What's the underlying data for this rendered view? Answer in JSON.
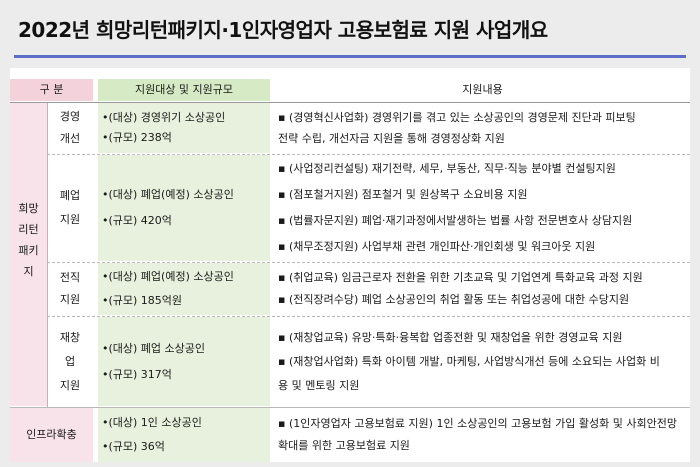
{
  "title": "2022년 희망리턴패키지·1인자영업자 고용보험료 지원 사업개요",
  "header": {
    "division": "구 분",
    "scope": "지원대상 및 지원규모",
    "content": "지원내용"
  },
  "group": {
    "label_lines": [
      "희망",
      "리턴",
      "패키",
      "지"
    ]
  },
  "rows": [
    {
      "sub_lines": [
        "경영",
        "개선"
      ],
      "scope": [
        "•(대상) 경영위기 소상공인",
        "•(규모) 238억"
      ],
      "items": [
        "▪ (경영혁신사업화) 경영위기를 겪고 있는 소상공인의 경영문제 진단과 피보팅",
        "   전략 수립, 개선자금 지원을 통해 경영정상화 지원"
      ]
    },
    {
      "sub_lines": [
        "폐업",
        "지원"
      ],
      "scope": [
        "•(대상) 폐업(예정) 소상공인",
        "•(규모) 420억"
      ],
      "items": [
        "▪ (사업정리컨설팅) 재기전략, 세무, 부동산, 직무·직능 분야별 컨설팅지원",
        "▪ (점포철거지원) 점포철거 및 원상복구 소요비용 지원",
        "▪ (법률자문지원) 폐업·재기과정에서발생하는 법률 사항 전문변호사 상담지원",
        "▪ (채무조정지원) 사업부채 관련 개인파산·개인회생 및 워크아웃 지원"
      ]
    },
    {
      "sub_lines": [
        "전직",
        "지원"
      ],
      "scope": [
        "•(대상) 폐업(예정) 소상공인",
        "•(규모) 185억원"
      ],
      "items": [
        "▪ (취업교육) 임금근로자 전환을 위한 기초교육 및 기업연계 특화교육 과정 지원",
        "▪ (전직장려수당) 폐업 소상공인의 취업 활동 또는 취업성공에 대한 수당지원"
      ]
    },
    {
      "sub_lines": [
        "재창",
        "업",
        "지원"
      ],
      "scope": [
        "•(대상) 폐업 소상공인",
        "•(규모) 317억"
      ],
      "items": [
        "▪ (재창업교육) 유망·특화·융복합 업종전환 및 재창업을 위한 경영교육 지원",
        "▪ (재창업사업화) 특화 아이템 개발, 마케팅, 사업방식개선 등에 소요되는 사업화 비",
        "   용 및 멘토링 지원"
      ]
    },
    {
      "label": "인프라확충",
      "scope": [
        "•(대상) 1인 소상공인",
        "•(규모) 36억"
      ],
      "items": [
        "▪ (1인자영업자 고용보험료 지원) 1인 소상공인의 고용보험 가입 활성화 및 사회안전망",
        "   확대를 위한 고용보험료 지원"
      ]
    }
  ]
}
